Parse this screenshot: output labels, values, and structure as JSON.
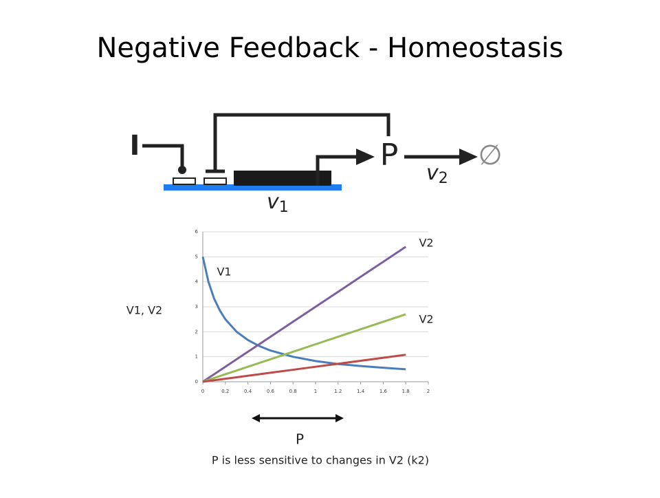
{
  "title": "Negative Feedback - Homeostasis",
  "diagram": {
    "input": "I",
    "product": "P",
    "sink": "∅",
    "rate_in": {
      "symbol": "v",
      "index": "1"
    },
    "rate_out": {
      "symbol": "v",
      "index": "2"
    }
  },
  "chart_data": {
    "type": "line",
    "x": [
      0,
      0.05,
      0.1,
      0.15,
      0.2,
      0.3,
      0.4,
      0.5,
      0.6,
      0.8,
      1.0,
      1.2,
      1.4,
      1.6,
      1.8
    ],
    "series": [
      {
        "name": "V1",
        "color": "#4a7ebb",
        "values": [
          5,
          4,
          3.33,
          2.86,
          2.5,
          2,
          1.67,
          1.43,
          1.25,
          1,
          0.83,
          0.71,
          0.63,
          0.56,
          0.5
        ]
      },
      {
        "name": "V2",
        "color": "#7d5fa0",
        "values": [
          0,
          0.15,
          0.3,
          0.45,
          0.6,
          0.9,
          1.2,
          1.5,
          1.8,
          2.4,
          3,
          3.6,
          4.2,
          4.8,
          5.4
        ]
      },
      {
        "name": "V2",
        "color": "#98b954",
        "values": [
          0,
          0.075,
          0.15,
          0.225,
          0.3,
          0.45,
          0.6,
          0.75,
          0.9,
          1.2,
          1.5,
          1.8,
          2.1,
          2.4,
          2.7
        ]
      },
      {
        "name": "V2",
        "color": "#be4b48",
        "values": [
          0,
          0.03,
          0.06,
          0.09,
          0.12,
          0.18,
          0.24,
          0.3,
          0.36,
          0.48,
          0.6,
          0.72,
          0.84,
          0.96,
          1.08
        ]
      }
    ],
    "xlim": [
      0,
      2
    ],
    "xticks": [
      0,
      0.2,
      0.4,
      0.6,
      0.8,
      1,
      1.2,
      1.4,
      1.6,
      1.8,
      2
    ],
    "ylim": [
      0,
      6
    ],
    "yticks": [
      0,
      1,
      2,
      3,
      4,
      5,
      6
    ],
    "grid": true,
    "y_label": "V1, V2",
    "x_label": "P"
  },
  "caption": "P is less sensitive to changes in V2 (k2)"
}
